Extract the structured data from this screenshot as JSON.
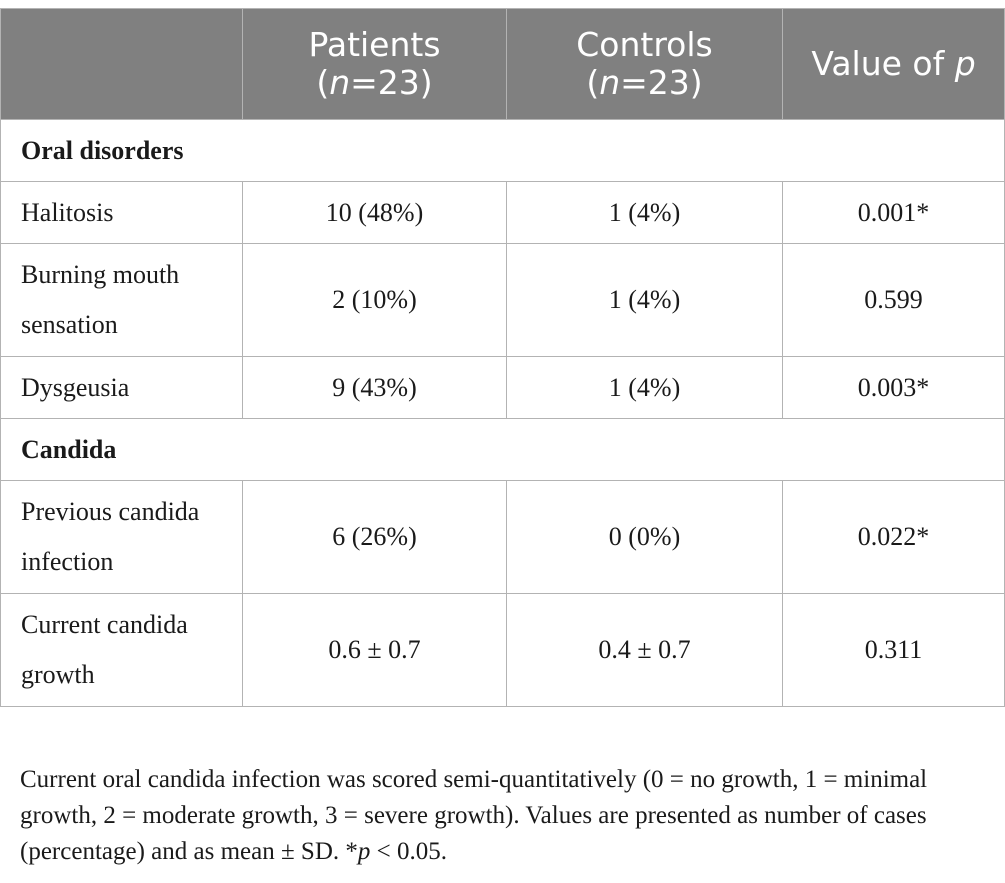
{
  "table": {
    "headers": [
      {
        "line1": "Patients",
        "n_prefix": "(",
        "n_letter": "n",
        "n_suffix": "=23)"
      },
      {
        "line1": "Controls",
        "n_prefix": "(",
        "n_letter": "n",
        "n_suffix": "=23)"
      },
      {
        "text": "Value of ",
        "italic": "p"
      }
    ],
    "sections": [
      {
        "title": "Oral disorders",
        "rows": [
          {
            "label_line1": "Halitosis",
            "label_line2": "",
            "patients": "10 (48%)",
            "controls": "1 (4%)",
            "p": "0.001*"
          },
          {
            "label_line1": "Burning mouth",
            "label_line2": "sensation",
            "patients": "2 (10%)",
            "controls": "1 (4%)",
            "p": "0.599"
          },
          {
            "label_line1": "Dysgeusia",
            "label_line2": "",
            "patients": "9 (43%)",
            "controls": "1 (4%)",
            "p": "0.003*"
          }
        ]
      },
      {
        "title": "Candida",
        "rows": [
          {
            "label_line1": "Previous candida",
            "label_line2": "infection",
            "patients": "6 (26%)",
            "controls": "0 (0%)",
            "p": "0.022*"
          },
          {
            "label_line1": "Current candida",
            "label_line2": "growth",
            "patients": "0.6 ± 0.7",
            "controls": "0.4 ± 0.7",
            "p": "0.311"
          }
        ]
      }
    ]
  },
  "footnote": {
    "main": "Current oral candida infection was scored semi-quantitatively (0 = no growth, 1 = minimal growth, 2 = moderate growth, 3 = severe growth). Values are presented as number of cases (percentage) and as mean ± SD. *",
    "p_italic": "p",
    "tail": " < 0.05."
  }
}
